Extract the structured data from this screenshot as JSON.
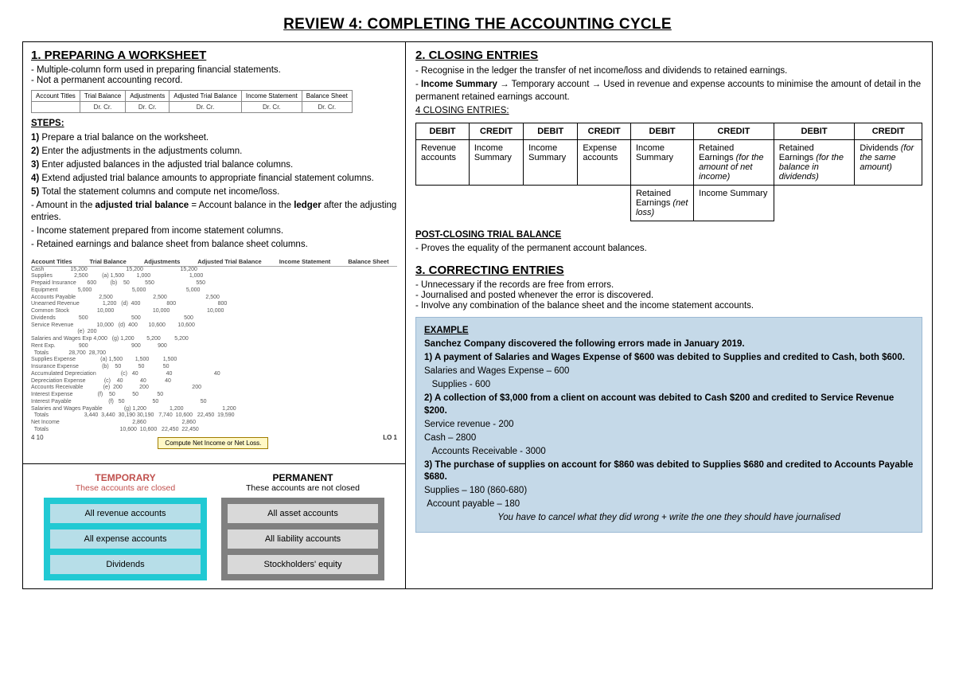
{
  "title": "REVIEW 4: COMPLETING THE ACCOUNTING CYCLE",
  "left": {
    "h1": "1. PREPARING A WORKSHEET",
    "bullets": [
      "Multiple-column form used in preparing financial statements.",
      "Not a permanent accounting record."
    ],
    "wk_headers": {
      "row1": [
        "Account Titles",
        "Trial Balance",
        "Adjustments",
        "Adjusted Trial Balance",
        "Income Statement",
        "Balance Sheet"
      ],
      "row2": [
        "",
        "Dr.   Cr.",
        "Dr.   Cr.",
        "Dr.   Cr.",
        "Dr.   Cr.",
        "Dr.   Cr."
      ]
    },
    "steps_label": "STEPS:",
    "steps": [
      "1) Prepare a trial balance on the worksheet.",
      "2) Enter the adjustments in the adjustments column.",
      "3) Enter adjusted balances in the adjusted trial balance columns.",
      "4) Extend adjusted trial balance amounts to appropriate financial statement columns.",
      "5) Total the statement columns and compute net income/loss."
    ],
    "notes_html": [
      "- Amount in the <b>adjusted trial balance</b> = Account balance in the <b>ledger</b> after the adjusting entries.",
      "- Income statement prepared from income statement columns.",
      "- Retained earnings and balance sheet from balance sheet columns."
    ],
    "figure": {
      "hdrs": [
        "Account Titles",
        "Trial Balance",
        "Adjustments",
        "Adjusted Trial Balance",
        "Income Statement",
        "Balance Sheet"
      ],
      "rows": [
        "Cash                 15,200                         15,200                        15,200",
        "Supplies              2,500         (a) 1,500        1,000                         1,000",
        "Prepaid Insurance       600         (b)    50          550                           550",
        "Equipment             5,000                          5,000                          5,000",
        "Accounts Payable               2,500                          2,500                         2,500",
        "Unearned Revenue               1,200   (d)  400                 800                           800",
        "Common Stock                  10,000                         10,000                        10,000",
        "Dividends               500                            500                            500",
        "Service Revenue               10,000   (d)  400       10,600        10,600",
        "                              (e)  200",
        "Salaries and Wages Exp 4,000   (g) 1,200        5,200         5,200",
        "Rent Exp.               900                            900           900",
        "  Totals             28,700  28,700",
        "Supplies Expense                (a) 1,500        1,500         1,500",
        "Insurance Expense               (b)    50           50            50",
        "Accumulated Depreciation                (c)   40                  40                           40",
        "Depreciation Expense            (c)    40           40            40",
        "Accounts Receivable             (e)  200           200                            200",
        "Interest Expense                (f)    50           50            50",
        "Interest Payable                        (f)   50                  50                           50",
        "Salaries and Wages Payable              (g) 1,200               1,200                         1,200",
        "  Totals                       3,440  3,440  30,190 30,190   7,740  10,600   22,450  19,590",
        "Net Income                                               2,860                       2,860",
        "  Totals                                              10,600  10,600   22,450  22,450"
      ],
      "button": "Compute Net Income or Net Loss.",
      "lo": "LO 1"
    },
    "tp": {
      "temp": {
        "head": "TEMPORARY",
        "sub": "These accounts are closed",
        "items": [
          "All revenue accounts",
          "All expense accounts",
          "Dividends"
        ]
      },
      "perm": {
        "head": "PERMANENT",
        "sub": "These accounts are not closed",
        "items": [
          "All asset accounts",
          "All liability accounts",
          "Stockholders' equity"
        ]
      }
    }
  },
  "right": {
    "h2": "2. CLOSING ENTRIES",
    "bullets2_html": [
      "- Recognise in the ledger the transfer of net income/loss and dividends to retained earnings.",
      "- <b>Income Summary</b> → Temporary account → Used in revenue and expense accounts to minimise the amount of detail in the permanent retained earnings account."
    ],
    "four_label": "4 CLOSING ENTRIES:",
    "ce_headers": [
      "DEBIT",
      "CREDIT",
      "DEBIT",
      "CREDIT",
      "DEBIT",
      "CREDIT",
      "DEBIT",
      "CREDIT"
    ],
    "ce_row1": [
      "Revenue accounts",
      "Income Summary",
      "Income Summary",
      "Expense accounts",
      "Income Summary",
      "Retained Earnings <i>(for the amount of net income)</i>",
      "Retained Earnings <i>(for the balance in dividends)</i>",
      "Dividends <i>(for the same amount)</i>"
    ],
    "ce_row2": [
      "Retained Earnings <i>(net loss)</i>",
      "Income Summary"
    ],
    "post_h": "POST-CLOSING TRIAL BALANCE",
    "post_b": "- Proves the equality of the permanent account balances.",
    "h3": "3. CORRECTING ENTRIES",
    "bullets3": [
      "Unnecessary if the records are free from errors.",
      "Journalised and posted whenever the error is discovered.",
      "Involve any combination of the balance sheet and the income statement accounts."
    ],
    "example": {
      "title": "EXAMPLE",
      "lines_html": [
        "<b>Sanchez Company discovered the following errors made in January 2019.</b>",
        "<b>1) A payment of Salaries and Wages Expense of $600 was debited to Supplies and credited to Cash, both $600.</b>",
        "Salaries and Wages Expense – 600",
        "&nbsp;&nbsp;&nbsp;Supplies - 600",
        "<b>2) A collection of $3,000 from a client on account was debited to Cash $200 and credited to Service Revenue $200.</b>",
        "Service revenue - 200",
        "Cash – 2800",
        "&nbsp;&nbsp;&nbsp;Accounts Receivable - 3000",
        "<b>3) The purchase of supplies on account for $860 was debited to Supplies $680 and credited to Accounts Payable $680.</b>",
        "Supplies – 180 (860-680)",
        "&nbsp;Account payable – 180"
      ],
      "footnote": "You have to cancel what they did wrong + write the one they should have journalised"
    }
  }
}
